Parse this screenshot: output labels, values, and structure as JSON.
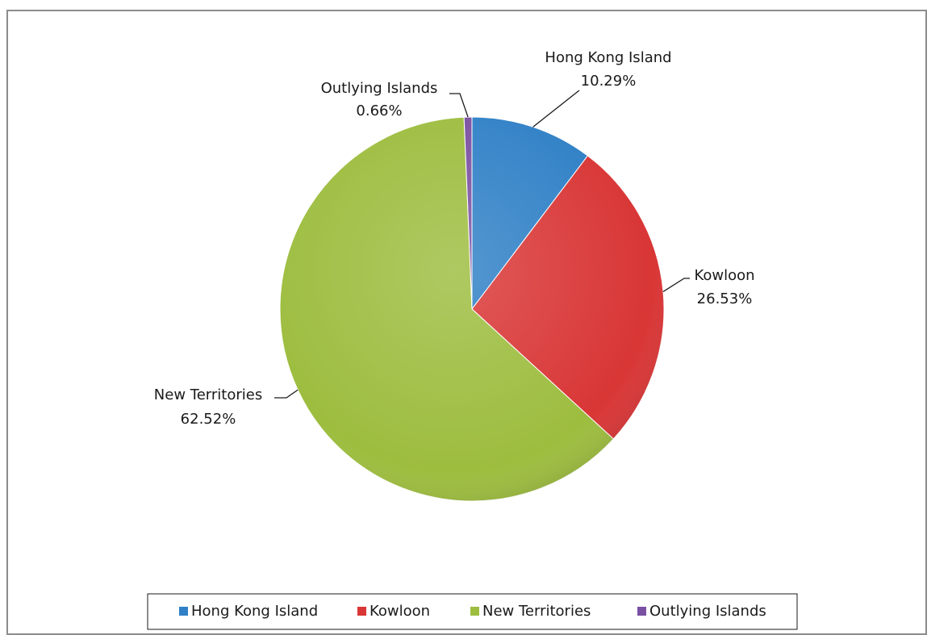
{
  "chart_data": {
    "type": "pie",
    "categories": [
      "Hong Kong Island",
      "Kowloon",
      "New Territories",
      "Outlying Islands"
    ],
    "values": [
      10.29,
      26.53,
      62.52,
      0.66
    ],
    "value_labels": [
      "10.29%",
      "26.53%",
      "62.52%",
      "0.66%"
    ],
    "colors": [
      "#2f80c6",
      "#d93636",
      "#9dbd3f",
      "#7a50a2"
    ],
    "legend": "bottom"
  }
}
